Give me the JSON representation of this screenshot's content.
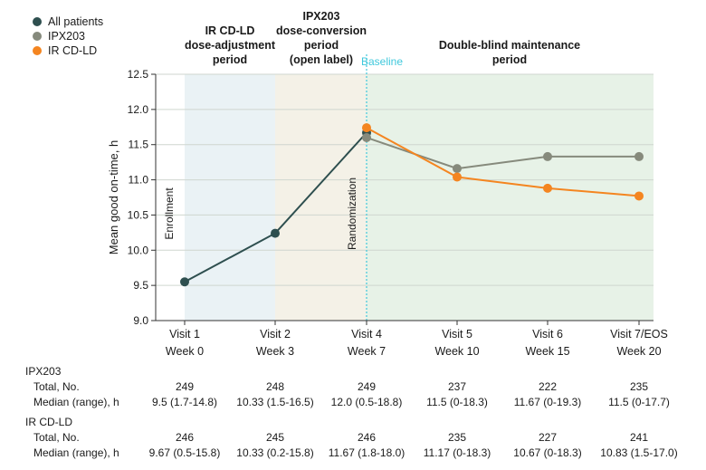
{
  "chart_data": {
    "type": "line",
    "ylabel": "Mean good on-time, h",
    "ylim": [
      9.0,
      12.5
    ],
    "yticks": [
      "9.0",
      "9.5",
      "10.0",
      "10.5",
      "11.0",
      "11.5",
      "12.0",
      "12.5"
    ],
    "visits": [
      "Visit 1",
      "Visit 2",
      "Visit 4",
      "Visit 5",
      "Visit 6",
      "Visit 7/EOS"
    ],
    "weeks": [
      "Week 0",
      "Week 3",
      "Week 7",
      "Week 10",
      "Week 15",
      "Week 20"
    ],
    "legend": [
      "All patients",
      "IPX203",
      "IR CD-LD"
    ],
    "periods": {
      "adjust": [
        "IR CD-LD",
        "dose-adjustment",
        "period"
      ],
      "conversion": [
        "IPX203",
        "dose-conversion",
        "period",
        "(open label)"
      ],
      "maintenance": [
        "Double-blind maintenance",
        "period"
      ],
      "baseline": "Baseline"
    },
    "annotations": {
      "enrollment": "Enrollment",
      "randomization": "Randomization"
    },
    "series": [
      {
        "name": "All patients",
        "color": "#2e4f4f",
        "x": [
          0,
          1,
          2
        ],
        "values": [
          9.55,
          10.24,
          11.67
        ]
      },
      {
        "name": "IPX203",
        "color": "#868a7c",
        "x": [
          2,
          3,
          4,
          5
        ],
        "values": [
          11.6,
          11.16,
          11.33,
          11.33
        ]
      },
      {
        "name": "IR CD-LD",
        "color": "#f48520",
        "x": [
          2,
          3,
          4,
          5
        ],
        "values": [
          11.74,
          11.04,
          10.88,
          10.77
        ]
      }
    ]
  },
  "table": {
    "ipx": {
      "label": "IPX203",
      "total_label": "Total, No.",
      "median_label": "Median (range), h",
      "totals": [
        "249",
        "248",
        "249",
        "237",
        "222",
        "235"
      ],
      "medians": [
        "9.5 (1.7-14.8)",
        "10.33 (1.5-16.5)",
        "12.0 (0.5-18.8)",
        "11.5 (0-18.3)",
        "11.67 (0-19.3)",
        "11.5 (0-17.7)"
      ]
    },
    "ir": {
      "label": "IR CD-LD",
      "total_label": "Total, No.",
      "median_label": "Median (range), h",
      "totals": [
        "246",
        "245",
        "246",
        "235",
        "227",
        "241"
      ],
      "medians": [
        "9.67 (0.5-15.8)",
        "10.33 (0.2-15.8)",
        "11.67 (1.8-18.0)",
        "11.17 (0-18.3)",
        "10.67 (0-18.3)",
        "10.83 (1.5-17.0)"
      ]
    }
  }
}
